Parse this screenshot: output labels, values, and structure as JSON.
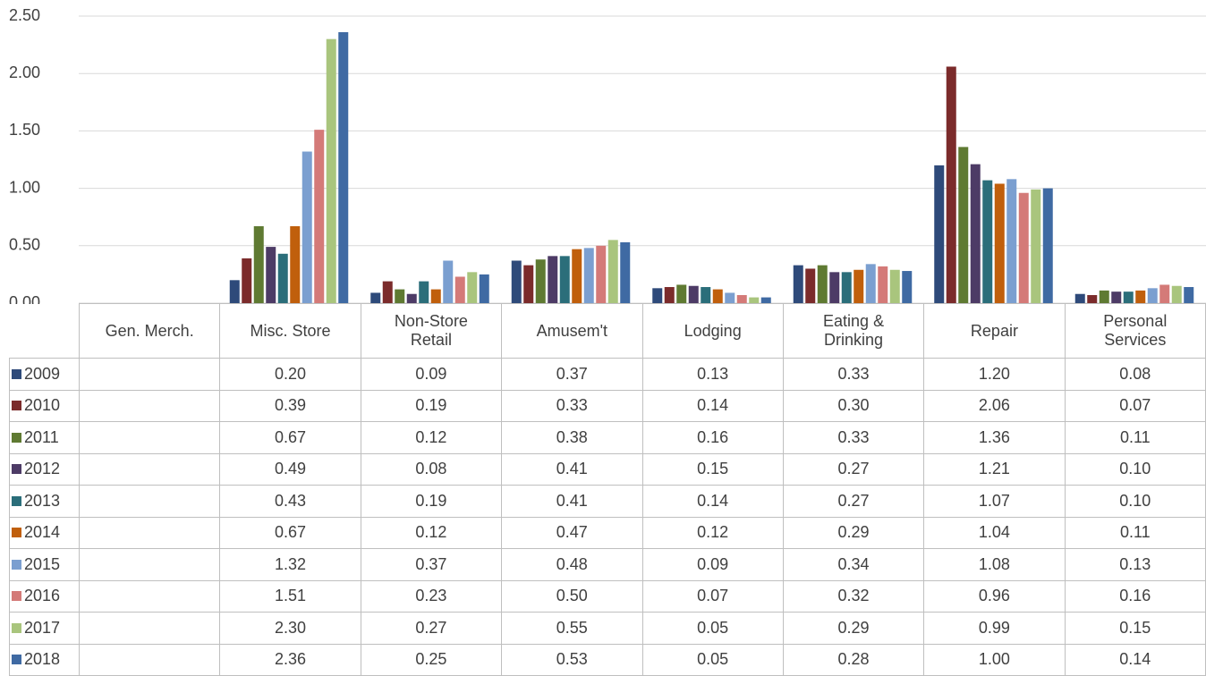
{
  "chart_data": {
    "type": "bar",
    "categories": [
      "Gen. Merch.",
      "Misc. Store",
      "Non-Store Retail",
      "Amusem't",
      "Lodging",
      "Eating & Drinking",
      "Repair",
      "Personal Services"
    ],
    "ylim": [
      0,
      2.5
    ],
    "yticks": [
      {
        "value": 0,
        "label": "0.00"
      },
      {
        "value": 0.5,
        "label": "0.50"
      },
      {
        "value": 1,
        "label": "1.00"
      },
      {
        "value": 1.5,
        "label": "1.50"
      },
      {
        "value": 2,
        "label": "2.00"
      },
      {
        "value": 2.5,
        "label": "2.50"
      }
    ],
    "grid": true,
    "series": [
      {
        "name": "2009",
        "color": "#2e4a7a",
        "values": [
          null,
          0.2,
          0.09,
          0.37,
          0.13,
          0.33,
          1.2,
          0.08
        ],
        "value_labels": [
          null,
          "0.20",
          "0.09",
          "0.37",
          "0.13",
          "0.33",
          "1.20",
          "0.08"
        ]
      },
      {
        "name": "2010",
        "color": "#7b2b2b",
        "values": [
          null,
          0.39,
          0.19,
          0.33,
          0.14,
          0.3,
          2.06,
          0.07
        ],
        "value_labels": [
          null,
          "0.39",
          "0.19",
          "0.33",
          "0.14",
          "0.30",
          "2.06",
          "0.07"
        ]
      },
      {
        "name": "2011",
        "color": "#5f7a32",
        "values": [
          null,
          0.67,
          0.12,
          0.38,
          0.16,
          0.33,
          1.36,
          0.11
        ],
        "value_labels": [
          null,
          "0.67",
          "0.12",
          "0.38",
          "0.16",
          "0.33",
          "1.36",
          "0.11"
        ]
      },
      {
        "name": "2012",
        "color": "#4d3b66",
        "values": [
          null,
          0.49,
          0.08,
          0.41,
          0.15,
          0.27,
          1.21,
          0.1
        ],
        "value_labels": [
          null,
          "0.49",
          "0.08",
          "0.41",
          "0.15",
          "0.27",
          "1.21",
          "0.10"
        ]
      },
      {
        "name": "2013",
        "color": "#2b6e7a",
        "values": [
          null,
          0.43,
          0.19,
          0.41,
          0.14,
          0.27,
          1.07,
          0.1
        ],
        "value_labels": [
          null,
          "0.43",
          "0.19",
          "0.41",
          "0.14",
          "0.27",
          "1.07",
          "0.10"
        ]
      },
      {
        "name": "2014",
        "color": "#c05f0c",
        "values": [
          null,
          0.67,
          0.12,
          0.47,
          0.12,
          0.29,
          1.04,
          0.11
        ],
        "value_labels": [
          null,
          "0.67",
          "0.12",
          "0.47",
          "0.12",
          "0.29",
          "1.04",
          "0.11"
        ]
      },
      {
        "name": "2015",
        "color": "#7b9fd0",
        "values": [
          null,
          1.32,
          0.37,
          0.48,
          0.09,
          0.34,
          1.08,
          0.13
        ],
        "value_labels": [
          null,
          "1.32",
          "0.37",
          "0.48",
          "0.09",
          "0.34",
          "1.08",
          "0.13"
        ]
      },
      {
        "name": "2016",
        "color": "#d47a78",
        "values": [
          null,
          1.51,
          0.23,
          0.5,
          0.07,
          0.32,
          0.96,
          0.16
        ],
        "value_labels": [
          null,
          "1.51",
          "0.23",
          "0.50",
          "0.07",
          "0.32",
          "0.96",
          "0.16"
        ]
      },
      {
        "name": "2017",
        "color": "#a9c57d",
        "values": [
          null,
          2.3,
          0.27,
          0.55,
          0.05,
          0.29,
          0.99,
          0.15
        ],
        "value_labels": [
          null,
          "2.30",
          "0.27",
          "0.55",
          "0.05",
          "0.29",
          "0.99",
          "0.15"
        ]
      },
      {
        "name": "2018",
        "color": "#3f6aa3",
        "values": [
          null,
          2.36,
          0.25,
          0.53,
          0.05,
          0.28,
          1.0,
          0.14
        ],
        "value_labels": [
          null,
          "2.36",
          "0.25",
          "0.53",
          "0.05",
          "0.28",
          "1.00",
          "0.14"
        ]
      }
    ]
  }
}
